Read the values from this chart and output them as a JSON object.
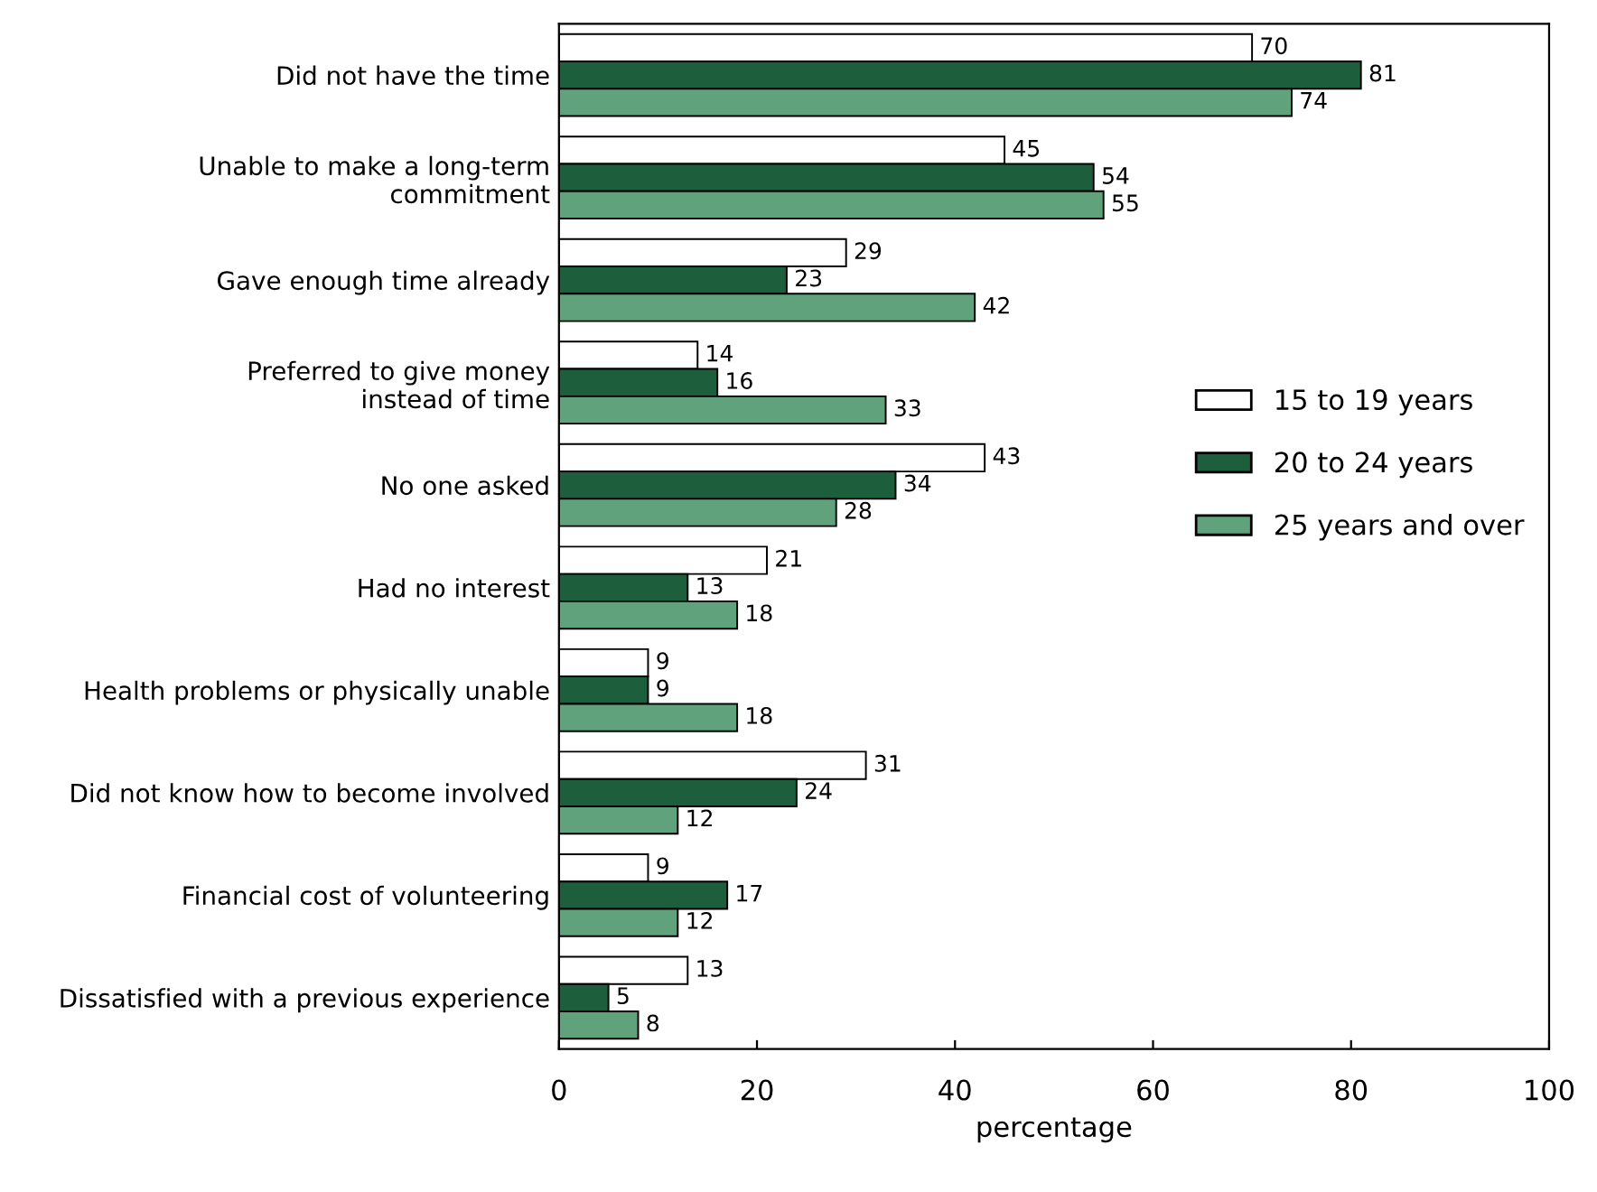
{
  "chart_data": {
    "type": "bar",
    "orientation": "horizontal",
    "xlabel": "percentage",
    "categories": [
      "Did not have the time",
      "Unable to make a long-term\ncommitment",
      "Gave enough time already",
      "Preferred to give money\ninstead of time",
      "No one asked",
      "Had no interest",
      "Health problems or physically unable",
      "Did not know how to become involved",
      "Financial cost of volunteering",
      "Dissatisfied with a previous experience"
    ],
    "series": [
      {
        "name": "15 to 19 years",
        "color": "#ffffff",
        "values": [
          70,
          45,
          29,
          14,
          43,
          21,
          9,
          31,
          9,
          13
        ]
      },
      {
        "name": "20 to 24 years",
        "color": "#1d5e3c",
        "values": [
          81,
          54,
          23,
          16,
          34,
          13,
          9,
          24,
          17,
          5
        ]
      },
      {
        "name": "25 years and over",
        "color": "#5fa27c",
        "values": [
          74,
          55,
          42,
          33,
          28,
          18,
          18,
          12,
          12,
          8
        ]
      }
    ],
    "xlim": [
      0,
      100
    ],
    "xticks": [
      0,
      20,
      40,
      60,
      80,
      100
    ],
    "data_labels": true,
    "legend": "right",
    "grid": false
  }
}
